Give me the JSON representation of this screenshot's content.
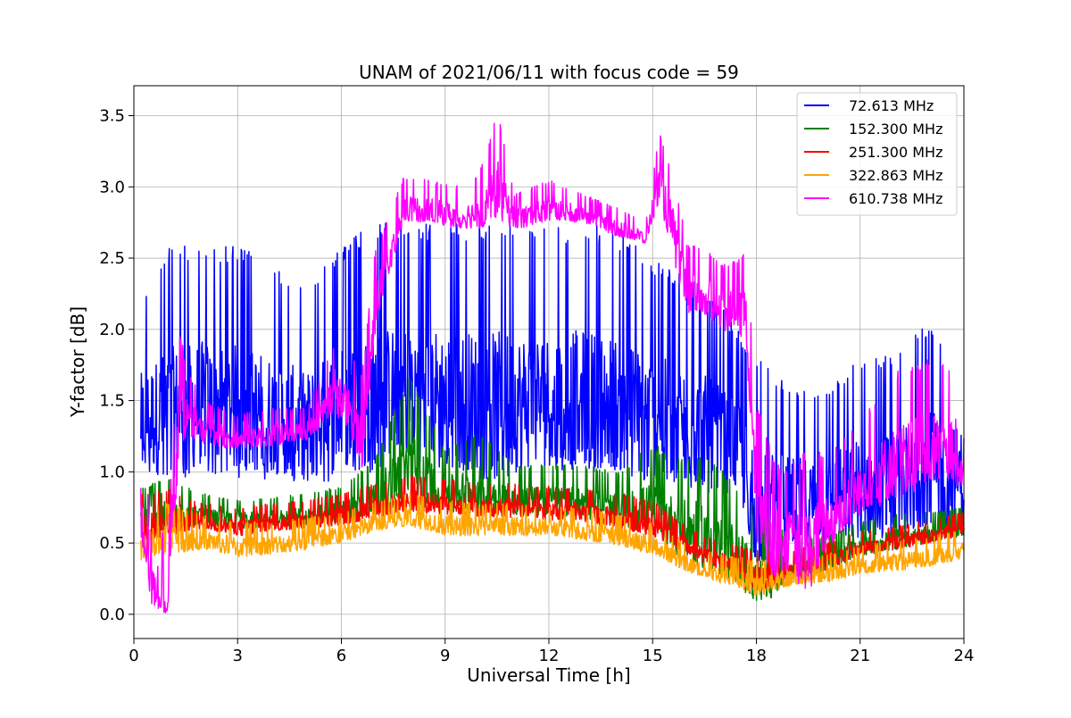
{
  "chart_data": {
    "type": "line",
    "title": "UNAM of 2021/06/11 with focus code = 59",
    "xlabel": "Universal Time [h]",
    "ylabel": "Y-factor [dB]",
    "xlim": [
      0,
      24
    ],
    "ylim": [
      -0.17,
      3.71
    ],
    "xticks": [
      0,
      3,
      6,
      9,
      12,
      15,
      18,
      21,
      24
    ],
    "xtick_labels": [
      "0",
      "3",
      "6",
      "9",
      "12",
      "15",
      "18",
      "21",
      "24"
    ],
    "yticks": [
      0.0,
      0.5,
      1.0,
      1.5,
      2.0,
      2.5,
      3.0,
      3.5
    ],
    "ytick_labels": [
      "0.0",
      "0.5",
      "1.0",
      "1.5",
      "2.0",
      "2.5",
      "3.0",
      "3.5"
    ],
    "grid": true,
    "legend_position": "top-right",
    "series": [
      {
        "name": "72.613 MHz",
        "color": "#0000ff",
        "x": [
          0.2,
          1,
          2,
          3,
          4,
          5,
          6,
          7,
          8,
          9,
          10,
          11,
          12,
          13,
          14,
          15,
          15.8,
          16.5,
          17.5,
          18,
          19,
          20,
          21,
          22,
          23,
          24
        ],
        "min": [
          1.0,
          0.9,
          1.0,
          0.95,
          0.95,
          0.9,
          0.95,
          1.0,
          1.1,
          1.0,
          0.95,
          0.95,
          1.0,
          1.0,
          0.95,
          0.9,
          0.9,
          0.85,
          0.8,
          0.3,
          0.45,
          0.45,
          0.5,
          0.5,
          0.6,
          0.6
        ],
        "max": [
          2.2,
          2.6,
          2.6,
          2.6,
          2.45,
          2.3,
          2.6,
          2.75,
          2.75,
          2.75,
          2.75,
          2.75,
          2.7,
          2.75,
          2.7,
          2.5,
          2.4,
          2.3,
          2.0,
          1.8,
          1.6,
          1.6,
          1.8,
          1.85,
          2.05,
          1.8
        ]
      },
      {
        "name": "152.300 MHz",
        "color": "#008000",
        "x": [
          0.2,
          1,
          2,
          3,
          4,
          5,
          6,
          7,
          8,
          9,
          10,
          11,
          12,
          13,
          14,
          15,
          15.8,
          16.5,
          17.5,
          18,
          19,
          20,
          21,
          22,
          23,
          24
        ],
        "min": [
          0.55,
          0.6,
          0.62,
          0.6,
          0.6,
          0.62,
          0.65,
          0.7,
          0.75,
          0.72,
          0.7,
          0.7,
          0.68,
          0.68,
          0.62,
          0.55,
          0.4,
          0.3,
          0.2,
          0.05,
          0.2,
          0.3,
          0.4,
          0.45,
          0.5,
          0.55
        ],
        "max": [
          0.9,
          0.95,
          0.85,
          0.8,
          0.82,
          0.85,
          0.9,
          1.1,
          1.7,
          1.15,
          1.3,
          1.05,
          1.05,
          1.05,
          1.0,
          1.2,
          1.1,
          1.15,
          0.9,
          0.75,
          0.55,
          0.55,
          0.65,
          0.7,
          0.72,
          0.75
        ]
      },
      {
        "name": "251.300 MHz",
        "color": "#ff0000",
        "x": [
          0.2,
          1,
          2,
          3,
          4,
          5,
          6,
          7,
          8,
          9,
          10,
          11,
          12,
          13,
          14,
          15,
          15.8,
          16.5,
          17.5,
          18,
          19,
          20,
          21,
          22,
          23,
          24
        ],
        "min": [
          0.5,
          0.55,
          0.6,
          0.55,
          0.58,
          0.6,
          0.62,
          0.68,
          0.72,
          0.7,
          0.68,
          0.68,
          0.66,
          0.65,
          0.6,
          0.55,
          0.45,
          0.35,
          0.28,
          0.15,
          0.25,
          0.3,
          0.42,
          0.45,
          0.5,
          0.55
        ],
        "max": [
          0.85,
          0.88,
          0.78,
          0.75,
          0.78,
          0.8,
          0.85,
          0.92,
          0.98,
          0.95,
          0.92,
          0.92,
          0.9,
          0.88,
          0.85,
          0.8,
          0.65,
          0.55,
          0.48,
          0.45,
          0.45,
          0.5,
          0.58,
          0.62,
          0.66,
          0.72
        ]
      },
      {
        "name": "322.863 MHz",
        "color": "#ffa500",
        "x": [
          0.2,
          1,
          2,
          3,
          4,
          5,
          6,
          7,
          8,
          9,
          10,
          11,
          12,
          13,
          14,
          15,
          15.8,
          16.5,
          17.5,
          18,
          19,
          20,
          21,
          22,
          23,
          24
        ],
        "min": [
          0.38,
          0.42,
          0.45,
          0.4,
          0.42,
          0.45,
          0.5,
          0.58,
          0.62,
          0.55,
          0.55,
          0.55,
          0.55,
          0.52,
          0.48,
          0.42,
          0.32,
          0.25,
          0.18,
          0.12,
          0.2,
          0.22,
          0.28,
          0.3,
          0.33,
          0.38
        ],
        "max": [
          0.75,
          0.78,
          0.7,
          0.65,
          0.65,
          0.68,
          0.72,
          0.8,
          0.85,
          0.8,
          0.78,
          0.78,
          0.76,
          0.75,
          0.7,
          0.65,
          0.52,
          0.45,
          0.4,
          0.38,
          0.38,
          0.42,
          0.48,
          0.52,
          0.55,
          0.6
        ]
      },
      {
        "name": "610.738 MHz",
        "color": "#ff00ff",
        "x": [
          0.2,
          0.5,
          1.0,
          1.3,
          1.5,
          2.0,
          3.0,
          4.0,
          5.0,
          5.8,
          6.2,
          6.6,
          7.0,
          7.8,
          8.5,
          9.5,
          10.0,
          10.5,
          11.0,
          12.0,
          13.0,
          14.0,
          14.8,
          15.2,
          15.6,
          16.0,
          16.5,
          17.0,
          17.7,
          18.0,
          18.5,
          19.0,
          19.5,
          20.0,
          21.0,
          22.0,
          23.0,
          24.0
        ],
        "min": [
          0.35,
          0.05,
          0.0,
          1.1,
          1.25,
          1.2,
          1.15,
          1.18,
          1.22,
          1.4,
          1.3,
          1.0,
          2.0,
          2.75,
          2.75,
          2.7,
          2.7,
          2.75,
          2.7,
          2.75,
          2.75,
          2.65,
          2.6,
          2.9,
          2.5,
          2.1,
          2.1,
          2.0,
          1.9,
          0.5,
          0.25,
          0.3,
          0.1,
          0.45,
          0.7,
          0.8,
          0.9,
          0.9
        ],
        "max": [
          1.4,
          0.6,
          0.6,
          2.05,
          1.75,
          1.5,
          1.4,
          1.45,
          1.45,
          1.9,
          1.85,
          1.7,
          2.6,
          3.07,
          3.05,
          3.0,
          3.1,
          3.55,
          2.95,
          3.05,
          2.95,
          2.85,
          2.75,
          3.4,
          3.1,
          2.6,
          2.6,
          2.45,
          2.55,
          1.5,
          1.1,
          1.05,
          1.2,
          1.15,
          1.35,
          1.7,
          1.8,
          1.7
        ]
      }
    ]
  }
}
